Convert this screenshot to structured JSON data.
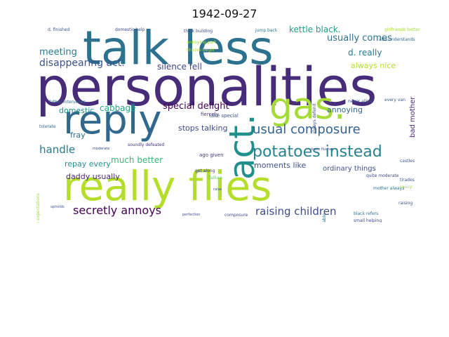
{
  "title": "1942-09-27",
  "chart_data": {
    "type": "wordcloud",
    "title": "1942-09-27",
    "words": [
      {
        "text": "personalities",
        "size": 76,
        "color": "#472c7a"
      },
      {
        "text": "talk less",
        "size": 66,
        "color": "#2c728e"
      },
      {
        "text": "really flies",
        "size": 58,
        "color": "#b5de2b"
      },
      {
        "text": "reply",
        "size": 56,
        "color": "#31688e"
      },
      {
        "text": "gas.",
        "size": 52,
        "color": "#a5db36"
      },
      {
        "text": "act.",
        "size": 50,
        "color": "#21908d"
      },
      {
        "text": "potatoes instead",
        "size": 22,
        "color": "#26828e"
      },
      {
        "text": "usual composure",
        "size": 18,
        "color": "#33638d"
      },
      {
        "text": "secretly annoys",
        "size": 16,
        "color": "#440154"
      },
      {
        "text": "raising children",
        "size": 15,
        "color": "#3e4a89"
      },
      {
        "text": "handle",
        "size": 15,
        "color": "#2a788e"
      },
      {
        "text": "disappearing act.",
        "size": 14,
        "color": "#3b528b"
      },
      {
        "text": "special delight",
        "size": 13,
        "color": "#440154"
      },
      {
        "text": "meeting",
        "size": 13,
        "color": "#2a788e"
      },
      {
        "text": "usually comes",
        "size": 13,
        "color": "#2c728e"
      },
      {
        "text": "kettle black.",
        "size": 12,
        "color": "#1f9e89"
      },
      {
        "text": "cabbage",
        "size": 12,
        "color": "#22a884"
      },
      {
        "text": "much better",
        "size": 12,
        "color": "#35b779"
      },
      {
        "text": "silence fell",
        "size": 12,
        "color": "#414487"
      },
      {
        "text": "d. really",
        "size": 12,
        "color": "#2a788e"
      },
      {
        "text": "stops talking",
        "size": 11,
        "color": "#3e4a89"
      },
      {
        "text": "fray",
        "size": 11,
        "color": "#2c728e"
      },
      {
        "text": "domestic",
        "size": 11,
        "color": "#21908d"
      },
      {
        "text": "moments like",
        "size": 11,
        "color": "#3b528b"
      },
      {
        "text": "daddy usually",
        "size": 11,
        "color": "#482878"
      },
      {
        "text": "repay every",
        "size": 11,
        "color": "#21918c"
      },
      {
        "text": "always nice",
        "size": 11,
        "color": "#b5de2b"
      },
      {
        "text": "annoying",
        "size": 11,
        "color": "#31688e"
      },
      {
        "text": "ordinary things",
        "size": 10,
        "color": "#3b528b"
      },
      {
        "text": "bad mother",
        "size": 10,
        "color": "#482878"
      },
      {
        "text": "take special",
        "size": 7,
        "color": "#3b528b"
      },
      {
        "text": "ago given",
        "size": 7,
        "color": "#46327e"
      },
      {
        "text": "get along",
        "size": 6,
        "color": "#443983"
      },
      {
        "text": "fiercely",
        "size": 7,
        "color": "#443983"
      },
      {
        "text": "failure",
        "size": 6,
        "color": "#5ec962"
      },
      {
        "text": "raise",
        "size": 5,
        "color": "#3b528b"
      },
      {
        "text": "father intervenes",
        "size": 6,
        "color": "#2c728e"
      },
      {
        "text": "tolerate",
        "size": 6,
        "color": "#31688e"
      },
      {
        "text": "moderate",
        "size": 5,
        "color": "#3e4a89"
      },
      {
        "text": "soundly defeated",
        "size": 6,
        "color": "#46327e"
      },
      {
        "text": "think building",
        "size": 6,
        "color": "#3e4a89"
      },
      {
        "text": "annoying part",
        "size": 6,
        "color": "#a0da39"
      },
      {
        "text": "tirades begin",
        "size": 6,
        "color": "#bddf26"
      },
      {
        "text": "jump back",
        "size": 6,
        "color": "#2a788e"
      },
      {
        "text": "girlfriends better",
        "size": 6,
        "color": "#a0da39"
      },
      {
        "text": "domestic help",
        "size": 6,
        "color": "#3e4a89"
      },
      {
        "text": "d. finished",
        "size": 6,
        "color": "#3b528b"
      },
      {
        "text": "always defend",
        "size": 6,
        "color": "#3e4a89"
      },
      {
        "text": "never allow",
        "size": 6,
        "color": "#3b528b"
      },
      {
        "text": "every van",
        "size": 6,
        "color": "#3b528b"
      },
      {
        "text": "mother always",
        "size": 6,
        "color": "#2c728e"
      },
      {
        "text": "quite moderate",
        "size": 6,
        "color": "#3e4a89"
      },
      {
        "text": "castles",
        "size": 6,
        "color": "#3b528b"
      },
      {
        "text": "tirades",
        "size": 6,
        "color": "#3b528b"
      },
      {
        "text": "raising",
        "size": 6,
        "color": "#3b528b"
      },
      {
        "text": "saucy",
        "size": 6,
        "color": "#a0da39"
      },
      {
        "text": "black refers",
        "size": 6,
        "color": "#2c728e"
      },
      {
        "text": "small helping",
        "size": 6,
        "color": "#3e4a89"
      },
      {
        "text": "also understands",
        "size": 6,
        "color": "#31688e"
      },
      {
        "text": "think anne",
        "size": 6,
        "color": "#46327e"
      },
      {
        "text": "interminable",
        "size": 6,
        "color": "#2a788e"
      },
      {
        "text": "composure",
        "size": 6,
        "color": "#3e4a89"
      },
      {
        "text": "perfection",
        "size": 5,
        "color": "#3e4a89"
      },
      {
        "text": "moderate expectations",
        "size": 6,
        "color": "#a0da39"
      },
      {
        "text": "upholds",
        "size": 5,
        "color": "#3b528b"
      },
      {
        "text": "doom flushes",
        "size": 5,
        "color": "#3b528b"
      }
    ]
  }
}
